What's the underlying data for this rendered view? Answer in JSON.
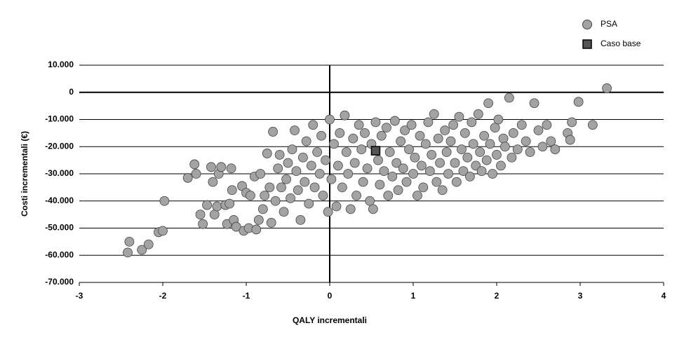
{
  "chart_data": {
    "type": "scatter",
    "xlabel": "QALY incrementali",
    "ylabel": "Costi incrementali (€)",
    "xlim": [
      -3,
      4
    ],
    "xticks": [
      -3,
      -2,
      -1,
      0,
      1,
      2,
      3,
      4
    ],
    "ylim": [
      -70000,
      10000
    ],
    "yticks": [
      {
        "value": 10000,
        "label": "10.000"
      },
      0,
      {
        "value": -10000,
        "label": "-10.000"
      },
      {
        "value": -20000,
        "label": "-20.000"
      },
      {
        "value": -30000,
        "label": "-30.000"
      },
      {
        "value": -40000,
        "label": "-40.000"
      },
      {
        "value": -50000,
        "label": "-50.000"
      },
      {
        "value": -60000,
        "label": "-60.000"
      },
      {
        "value": -70000,
        "label": "-70.000"
      }
    ],
    "grid": true,
    "legend": "top-right",
    "series": [
      {
        "name": "PSA",
        "color": "#a3a3a3",
        "marker": "circle",
        "x": [
          -2.42,
          -2.4,
          -2.25,
          -2.17,
          -2.05,
          -2.0,
          -1.98,
          -1.7,
          -1.62,
          -1.6,
          -1.55,
          -1.52,
          -1.47,
          -1.42,
          -1.4,
          -1.38,
          -1.35,
          -1.33,
          -1.3,
          -1.25,
          -1.23,
          -1.2,
          -1.18,
          -1.17,
          -1.15,
          -1.12,
          -1.05,
          -1.03,
          -1.0,
          -0.97,
          -0.95,
          -0.9,
          -0.88,
          -0.85,
          -0.83,
          -0.8,
          -0.78,
          -0.75,
          -0.72,
          -0.7,
          -0.68,
          -0.65,
          -0.62,
          -0.6,
          -0.58,
          -0.55,
          -0.52,
          -0.5,
          -0.47,
          -0.45,
          -0.42,
          -0.4,
          -0.38,
          -0.35,
          -0.32,
          -0.3,
          -0.28,
          -0.25,
          -0.22,
          -0.2,
          -0.18,
          -0.15,
          -0.12,
          -0.1,
          -0.08,
          -0.05,
          -0.02,
          0.0,
          0.02,
          0.05,
          0.08,
          0.1,
          0.12,
          0.15,
          0.18,
          0.2,
          0.22,
          0.25,
          0.28,
          0.3,
          0.32,
          0.35,
          0.38,
          0.4,
          0.42,
          0.45,
          0.48,
          0.5,
          0.52,
          0.55,
          0.58,
          0.6,
          0.62,
          0.65,
          0.68,
          0.7,
          0.72,
          0.75,
          0.78,
          0.8,
          0.82,
          0.85,
          0.88,
          0.9,
          0.92,
          0.95,
          0.98,
          1.0,
          1.02,
          1.05,
          1.08,
          1.1,
          1.12,
          1.15,
          1.18,
          1.2,
          1.22,
          1.25,
          1.28,
          1.3,
          1.32,
          1.35,
          1.38,
          1.4,
          1.42,
          1.45,
          1.48,
          1.5,
          1.52,
          1.55,
          1.58,
          1.6,
          1.62,
          1.65,
          1.68,
          1.7,
          1.72,
          1.75,
          1.78,
          1.8,
          1.82,
          1.85,
          1.88,
          1.9,
          1.92,
          1.95,
          1.98,
          2.0,
          2.02,
          2.05,
          2.08,
          2.1,
          2.15,
          2.18,
          2.2,
          2.25,
          2.3,
          2.35,
          2.4,
          2.45,
          2.5,
          2.55,
          2.6,
          2.65,
          2.7,
          2.85,
          2.88,
          2.9,
          2.98,
          3.15,
          3.32
        ],
        "values": [
          -59000,
          -55000,
          -58000,
          -56000,
          -51500,
          -51000,
          -40000,
          -31500,
          -26500,
          -30000,
          -45000,
          -48500,
          -41500,
          -27500,
          -33000,
          -45000,
          -42000,
          -30000,
          -27500,
          -41500,
          -48500,
          -41000,
          -28000,
          -36000,
          -47000,
          -49500,
          -34500,
          -51000,
          -37000,
          -50000,
          -38000,
          -31000,
          -50500,
          -47000,
          -30000,
          -43000,
          -38000,
          -22500,
          -35000,
          -48000,
          -14500,
          -40000,
          -28000,
          -23000,
          -35000,
          -44000,
          -32000,
          -26000,
          -39000,
          -21000,
          -14000,
          -29000,
          -36000,
          -47000,
          -24000,
          -33000,
          -18000,
          -41000,
          -27000,
          -12000,
          -35000,
          -22000,
          -30000,
          -16000,
          -38000,
          -25000,
          -44000,
          -10000,
          -32000,
          -19000,
          -42000,
          -27000,
          -15000,
          -35000,
          -8500,
          -22000,
          -30000,
          -43000,
          -17000,
          -26000,
          -38000,
          -12000,
          -21000,
          -33000,
          -15000,
          -28000,
          -40000,
          -19000,
          -43000,
          -11000,
          -25000,
          -34000,
          -16000,
          -29000,
          -13000,
          -38000,
          -22000,
          -31000,
          -10500,
          -26000,
          -36000,
          -18000,
          -28000,
          -14000,
          -33000,
          -21000,
          -12000,
          -30000,
          -24000,
          -38000,
          -16000,
          -27000,
          -35000,
          -19000,
          -11000,
          -29000,
          -23000,
          -8000,
          -33000,
          -17000,
          -26000,
          -36000,
          -14000,
          -22000,
          -30000,
          -18000,
          -12000,
          -26000,
          -33000,
          -9000,
          -21000,
          -29000,
          -15000,
          -24000,
          -31000,
          -11000,
          -19000,
          -27000,
          -8000,
          -22000,
          -29000,
          -16000,
          -25000,
          -4000,
          -19000,
          -30000,
          -13000,
          -23000,
          -10000,
          -27000,
          -17000,
          -20000,
          -2000,
          -24000,
          -15000,
          -21000,
          -12000,
          -18000,
          -22000,
          -4000,
          -14000,
          -20000,
          -12000,
          -18000,
          -21000,
          -15000,
          -17500,
          -11000,
          -3500,
          -12000,
          1500
        ]
      },
      {
        "name": "Caso base",
        "color": "#555555",
        "marker": "square",
        "x": [
          0.55
        ],
        "values": [
          -21500
        ]
      }
    ]
  }
}
